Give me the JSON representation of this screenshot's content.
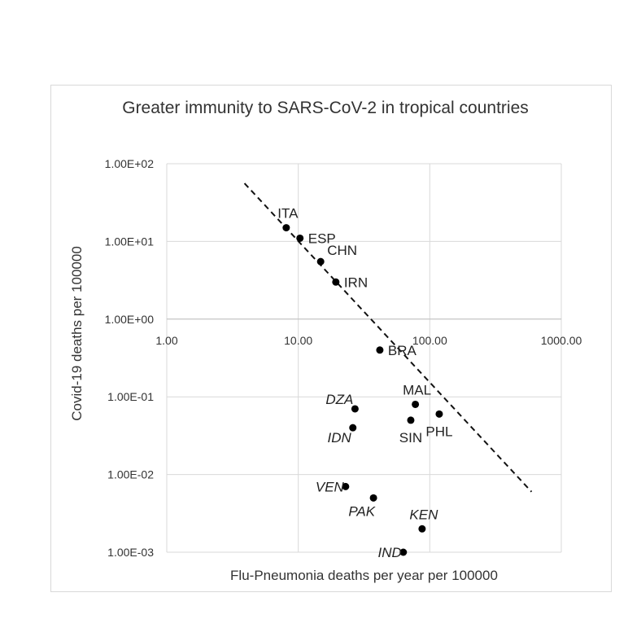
{
  "chart_data": {
    "type": "scatter",
    "title": "Greater immunity to SARS-CoV-2 in tropical countries",
    "xlabel": "Flu-Pneumonia deaths per year per 100000",
    "ylabel": "Covid-19 deaths  per 100000",
    "x_scale": "log",
    "y_scale": "log",
    "xlim": [
      1,
      1000
    ],
    "ylim": [
      0.001,
      100
    ],
    "x_ticks": [
      {
        "value": 1,
        "label": "1.00"
      },
      {
        "value": 10,
        "label": "10.00"
      },
      {
        "value": 100,
        "label": "100.00"
      },
      {
        "value": 1000,
        "label": "1000.00"
      }
    ],
    "y_ticks": [
      {
        "value": 100,
        "label": "1.00E+02"
      },
      {
        "value": 10,
        "label": "1.00E+01"
      },
      {
        "value": 1,
        "label": "1.00E+00"
      },
      {
        "value": 0.1,
        "label": "1.00E-01"
      },
      {
        "value": 0.01,
        "label": "1.00E-02"
      },
      {
        "value": 0.001,
        "label": "1.00E-03"
      }
    ],
    "grid": true,
    "points": [
      {
        "label": "ITA",
        "x": 8.1,
        "y": 15,
        "italic": false,
        "label_pos": "above"
      },
      {
        "label": "ESP",
        "x": 10.3,
        "y": 11,
        "italic": false,
        "label_pos": "right"
      },
      {
        "label": "CHN",
        "x": 14.8,
        "y": 5.5,
        "italic": false,
        "label_pos": "above-right"
      },
      {
        "label": "IRN",
        "x": 19.3,
        "y": 3.0,
        "italic": false,
        "label_pos": "right"
      },
      {
        "label": "BRA",
        "x": 41.7,
        "y": 0.4,
        "italic": false,
        "label_pos": "right"
      },
      {
        "label": "MAL",
        "x": 77.7,
        "y": 0.08,
        "italic": false,
        "label_pos": "above"
      },
      {
        "label": "PHL",
        "x": 118,
        "y": 0.06,
        "italic": false,
        "label_pos": "below"
      },
      {
        "label": "SIN",
        "x": 71.7,
        "y": 0.05,
        "italic": false,
        "label_pos": "below"
      },
      {
        "label": "DZA",
        "x": 27,
        "y": 0.07,
        "italic": true,
        "label_pos": "upper-left"
      },
      {
        "label": "IDN",
        "x": 26,
        "y": 0.04,
        "italic": true,
        "label_pos": "lower-left"
      },
      {
        "label": "VEN",
        "x": 22.9,
        "y": 0.007,
        "italic": true,
        "label_pos": "left"
      },
      {
        "label": "PAK",
        "x": 37.3,
        "y": 0.005,
        "italic": true,
        "label_pos": "below-left"
      },
      {
        "label": "KEN",
        "x": 87.4,
        "y": 0.002,
        "italic": true,
        "label_pos": "above"
      },
      {
        "label": "IND",
        "x": 62.9,
        "y": 0.001,
        "italic": true,
        "label_pos": "left"
      }
    ],
    "trendline": {
      "style": "dashed",
      "points": [
        [
          3.9,
          56
        ],
        [
          594,
          0.006
        ]
      ]
    }
  }
}
